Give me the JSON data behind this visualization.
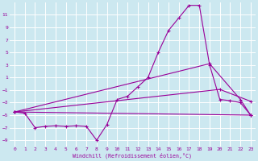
{
  "xlabel": "Windchill (Refroidissement éolien,°C)",
  "bg_color": "#cce8f0",
  "grid_color": "#ffffff",
  "line_color": "#990099",
  "xlim": [
    -0.5,
    23.5
  ],
  "ylim": [
    -10,
    13
  ],
  "yticks": [
    -9,
    -7,
    -5,
    -3,
    -1,
    1,
    3,
    5,
    7,
    9,
    11
  ],
  "xticks": [
    0,
    1,
    2,
    3,
    4,
    5,
    6,
    7,
    8,
    9,
    10,
    11,
    12,
    13,
    14,
    15,
    16,
    17,
    18,
    19,
    20,
    21,
    22,
    23
  ],
  "line1_x": [
    0,
    1,
    2,
    3,
    4,
    5,
    6,
    7,
    8,
    9,
    10,
    11,
    12,
    13,
    14,
    15,
    16,
    17,
    18,
    19,
    20,
    21,
    22,
    23
  ],
  "line1_y": [
    -4.5,
    -4.7,
    -7.0,
    -6.8,
    -6.7,
    -6.8,
    -6.7,
    -6.8,
    -9.0,
    -6.5,
    -2.5,
    -2.0,
    -0.5,
    1.0,
    5.0,
    8.5,
    10.5,
    12.5,
    12.5,
    3.0,
    -2.5,
    -2.7,
    -3.0,
    -5.0
  ],
  "line2_x": [
    0,
    23
  ],
  "line2_y": [
    -4.5,
    -5.0
  ],
  "line3_x": [
    0,
    20,
    23
  ],
  "line3_y": [
    -4.5,
    -0.9,
    -2.8
  ],
  "line4_x": [
    0,
    19,
    22,
    23
  ],
  "line4_y": [
    -4.5,
    3.2,
    -2.5,
    -5.0
  ]
}
